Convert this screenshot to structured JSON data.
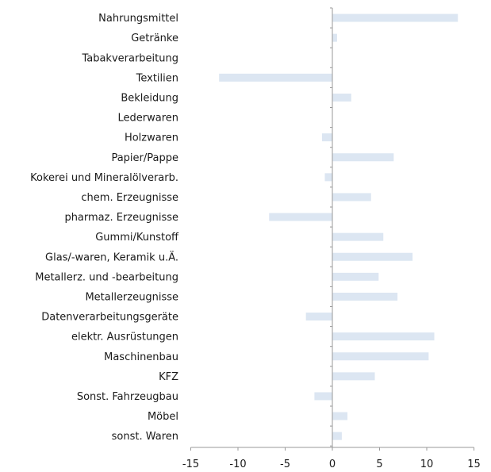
{
  "chart_data": {
    "type": "bar",
    "orientation": "horizontal",
    "categories": [
      "Nahrungsmittel",
      "Getränke",
      "Tabakverarbeitung",
      "Textilien",
      "Bekleidung",
      "Lederwaren",
      "Holzwaren",
      "Papier/Pappe",
      "Kokerei und Mineralölverarb.",
      "chem. Erzeugnisse",
      "pharmaz. Erzeugnisse",
      "Gummi/Kunstoff",
      "Glas/-waren, Keramik u.Ä.",
      "Metallerz. und -bearbeitung",
      "Metallerzeugnisse",
      "Datenverarbeitungsgeräte",
      "elektr. Ausrüstungen",
      "Maschinenbau",
      "KFZ",
      "Sonst. Fahrzeugbau",
      "Möbel",
      "sonst. Waren"
    ],
    "values": [
      13.3,
      0.5,
      0,
      -12.0,
      2.0,
      0,
      -1.1,
      6.5,
      -0.8,
      4.1,
      -6.7,
      5.4,
      8.5,
      4.9,
      6.9,
      -2.8,
      10.8,
      10.2,
      4.5,
      -1.9,
      1.6,
      1.0
    ],
    "xlim": [
      -15,
      15
    ],
    "xticks": [
      "-15",
      "-10",
      "-5",
      "0",
      "5",
      "10",
      "15"
    ],
    "grid": false,
    "legend": "none",
    "bar_color": "#dce6f2",
    "axis_color": "#9a9a9a"
  }
}
